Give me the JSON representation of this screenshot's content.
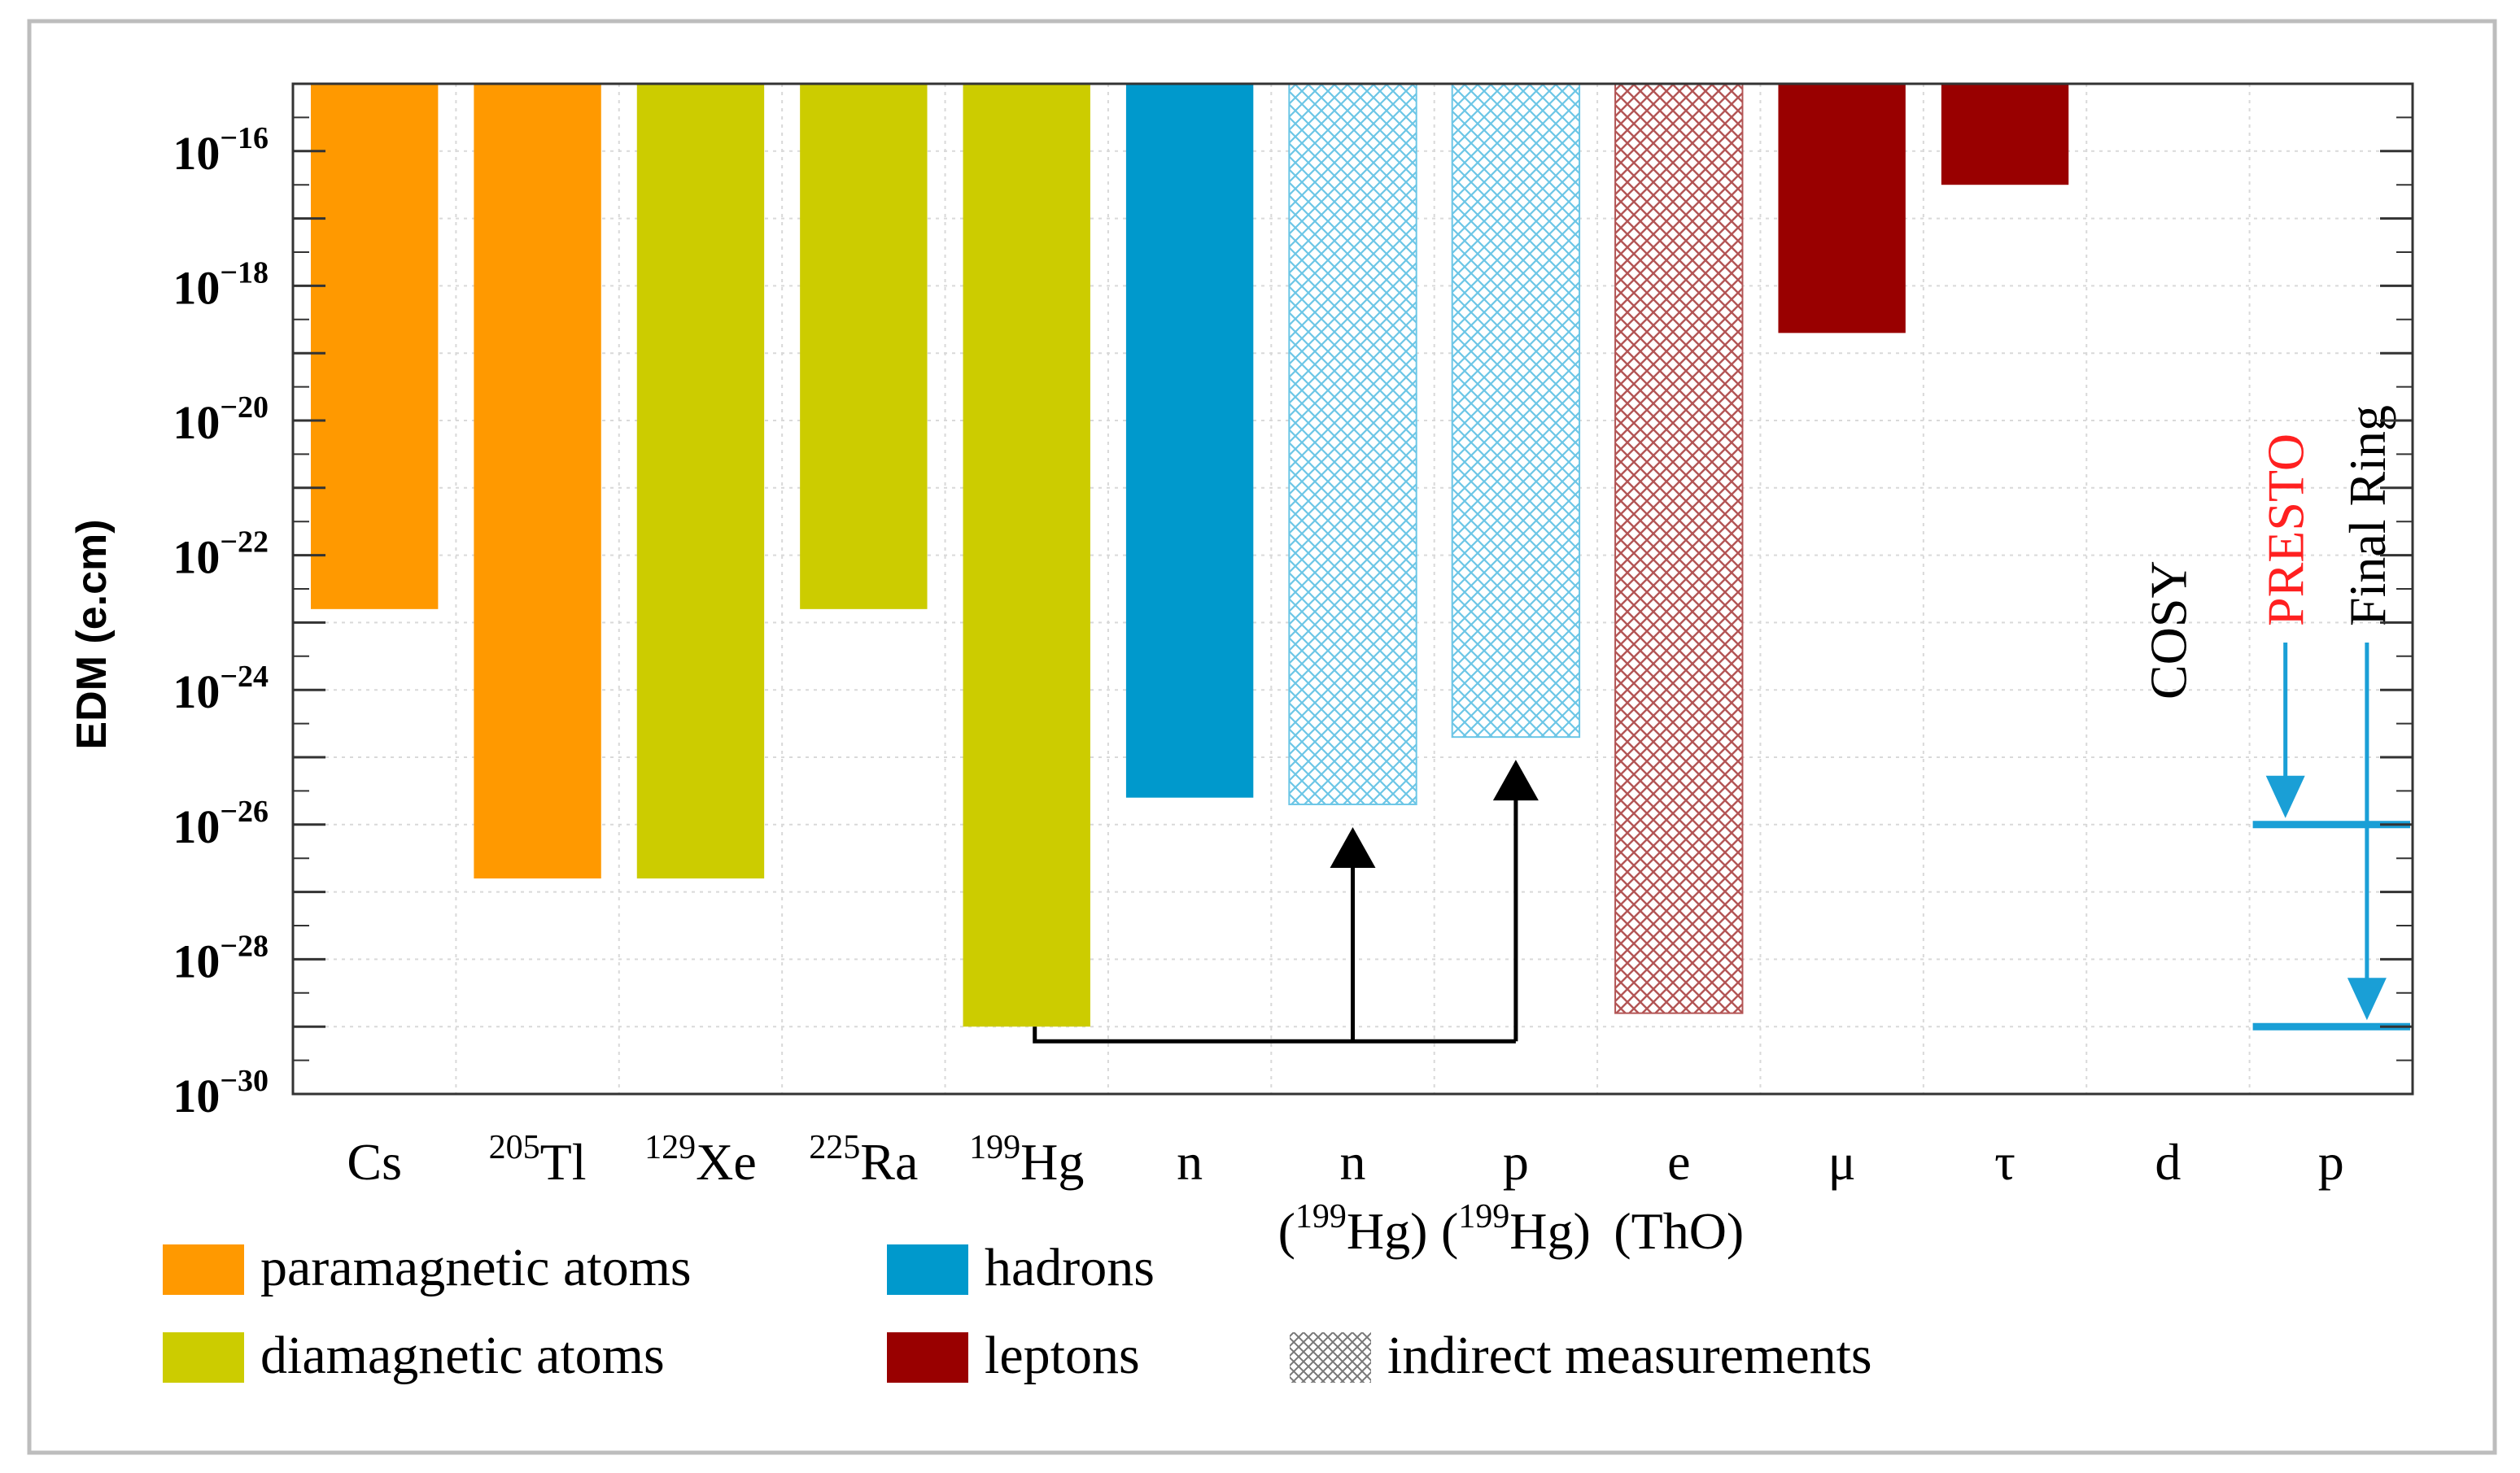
{
  "chart_data": {
    "type": "bar",
    "ylabel": "EDM (e.cm)",
    "yscale": "log",
    "ylim_exp": [
      -30,
      -15
    ],
    "yticks": [
      {
        "base": "10",
        "exp": "−16",
        "value": -16
      },
      {
        "base": "10",
        "exp": "−18",
        "value": -18
      },
      {
        "base": "10",
        "exp": "−20",
        "value": -20
      },
      {
        "base": "10",
        "exp": "−22",
        "value": -22
      },
      {
        "base": "10",
        "exp": "−24",
        "value": -24
      },
      {
        "base": "10",
        "exp": "−26",
        "value": -26
      },
      {
        "base": "10",
        "exp": "−28",
        "value": -28
      },
      {
        "base": "10",
        "exp": "−30",
        "value": -30
      }
    ],
    "categories": [
      {
        "sup": "",
        "label": "Cs",
        "sub": ""
      },
      {
        "sup": "205",
        "label": "Tl",
        "sub": ""
      },
      {
        "sup": "129",
        "label": "Xe",
        "sub": ""
      },
      {
        "sup": "225",
        "label": "Ra",
        "sub": ""
      },
      {
        "sup": "199",
        "label": "Hg",
        "sub": ""
      },
      {
        "sup": "",
        "label": "n",
        "sub": ""
      },
      {
        "sup": "",
        "label": "n",
        "sub_pre": "(",
        "sub_sup": "199",
        "sub_post": "Hg)"
      },
      {
        "sup": "",
        "label": "p",
        "sub_pre": "(",
        "sub_sup": "199",
        "sub_post": "Hg)"
      },
      {
        "sup": "",
        "label": "e",
        "sub_pre": "(ThO)",
        "sub_sup": "",
        "sub_post": ""
      },
      {
        "sup": "",
        "label": "μ",
        "sub": ""
      },
      {
        "sup": "",
        "label": "τ",
        "sub": ""
      },
      {
        "sup": "",
        "label": "d",
        "sub": ""
      },
      {
        "sup": "",
        "label": "p",
        "sub": ""
      }
    ],
    "bars": [
      {
        "category": 0,
        "limit_exp": -22.8,
        "group": "paramagnetic",
        "indirect": false
      },
      {
        "category": 1,
        "limit_exp": -26.8,
        "group": "paramagnetic",
        "indirect": false
      },
      {
        "category": 2,
        "limit_exp": -26.8,
        "group": "diamagnetic",
        "indirect": false
      },
      {
        "category": 3,
        "limit_exp": -22.8,
        "group": "diamagnetic",
        "indirect": false
      },
      {
        "category": 4,
        "limit_exp": -29.0,
        "group": "diamagnetic",
        "indirect": false
      },
      {
        "category": 5,
        "limit_exp": -25.6,
        "group": "hadrons",
        "indirect": false
      },
      {
        "category": 6,
        "limit_exp": -25.7,
        "group": "hadrons",
        "indirect": true
      },
      {
        "category": 7,
        "limit_exp": -24.7,
        "group": "hadrons",
        "indirect": true
      },
      {
        "category": 8,
        "limit_exp": -28.8,
        "group": "leptons",
        "indirect": true
      },
      {
        "category": 9,
        "limit_exp": -18.7,
        "group": "leptons",
        "indirect": false
      },
      {
        "category": 10,
        "limit_exp": -16.5,
        "group": "leptons",
        "indirect": false
      }
    ],
    "projections": [
      {
        "label": "COSY",
        "category": 11,
        "color": "#000000",
        "level_exp": null
      },
      {
        "label": "PRESTO",
        "category": 12,
        "color": "#ff2020",
        "level_exp": -26
      },
      {
        "label": "Final Ring",
        "category": 12,
        "color": "#000000",
        "level_exp": -29
      }
    ],
    "derivation_arrows": {
      "from_category": 4,
      "to_categories": [
        6,
        7
      ]
    },
    "colors": {
      "paramagnetic": "#ff9900",
      "diamagnetic": "#cccc00",
      "hadrons": "#0099cc",
      "leptons": "#990000",
      "projection_line": "#1a9fd6"
    },
    "legend": [
      {
        "key": "paramagnetic",
        "label": "paramagnetic atoms",
        "icon": "orange-swatch"
      },
      {
        "key": "hadrons",
        "label": "hadrons",
        "icon": "blue-swatch"
      },
      {
        "key": "diamagnetic",
        "label": "diamagnetic atoms",
        "icon": "yellow-swatch"
      },
      {
        "key": "leptons",
        "label": "leptons",
        "icon": "red-swatch"
      },
      {
        "key": "indirect",
        "label": "indirect measurements",
        "icon": "crosshatch-swatch"
      }
    ]
  }
}
